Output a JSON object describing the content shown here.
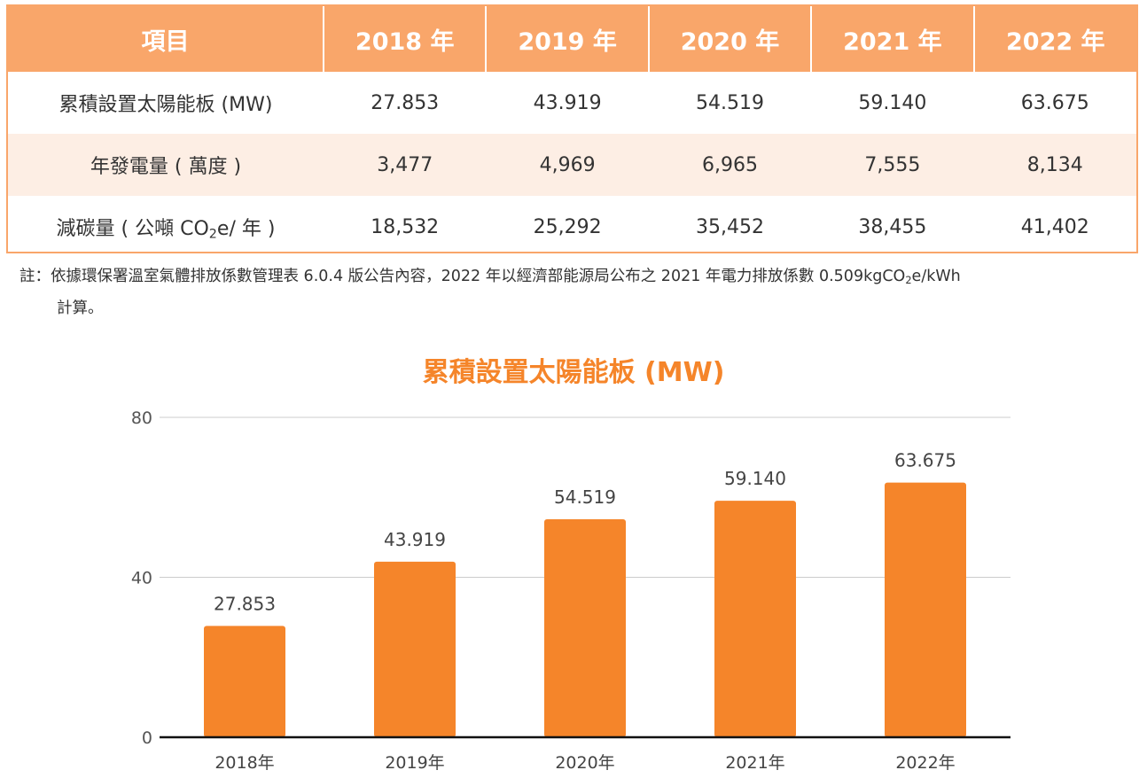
{
  "table": {
    "headers": [
      "項目",
      "2018 年",
      "2019 年",
      "2020 年",
      "2021 年",
      "2022 年"
    ],
    "rows": [
      {
        "label_html": "累積設置太陽能板 (MW)",
        "values": [
          "27.853",
          "43.919",
          "54.519",
          "59.140",
          "63.675"
        ]
      },
      {
        "label_html": "年發電量 ( 萬度 )",
        "values": [
          "3,477",
          "4,969",
          "6,965",
          "7,555",
          "8,134"
        ]
      },
      {
        "label_html": "減碳量 ( 公噸 CO<sub>2</sub>e/ 年 )",
        "values": [
          "18,532",
          "25,292",
          "35,452",
          "38,455",
          "41,402"
        ]
      }
    ]
  },
  "note": {
    "line1_html": "註：依據環保署溫室氣體排放係數管理表 6.0.4 版公告內容，2022 年以經濟部能源局公布之 2021 年電力排放係數 0.509kgCO<sub>2</sub>e/kWh",
    "line2": "計算。"
  },
  "colors": {
    "header_bg": "#f9a66a",
    "alt_row_bg": "#fdeee4",
    "bar": "#f5852a",
    "title": "#f5852a"
  },
  "chart_data": {
    "type": "bar",
    "title": "累積設置太陽能板 (MW)",
    "categories": [
      "2018年",
      "2019年",
      "2020年",
      "2021年",
      "2022年"
    ],
    "values": [
      27.853,
      43.919,
      54.519,
      59.14,
      63.675
    ],
    "value_labels": [
      "27.853",
      "43.919",
      "54.519",
      "59.140",
      "63.675"
    ],
    "yticks": [
      "0",
      "40",
      "80"
    ],
    "ylim": [
      0,
      80
    ],
    "grid": true,
    "xlabel": "",
    "ylabel": ""
  }
}
